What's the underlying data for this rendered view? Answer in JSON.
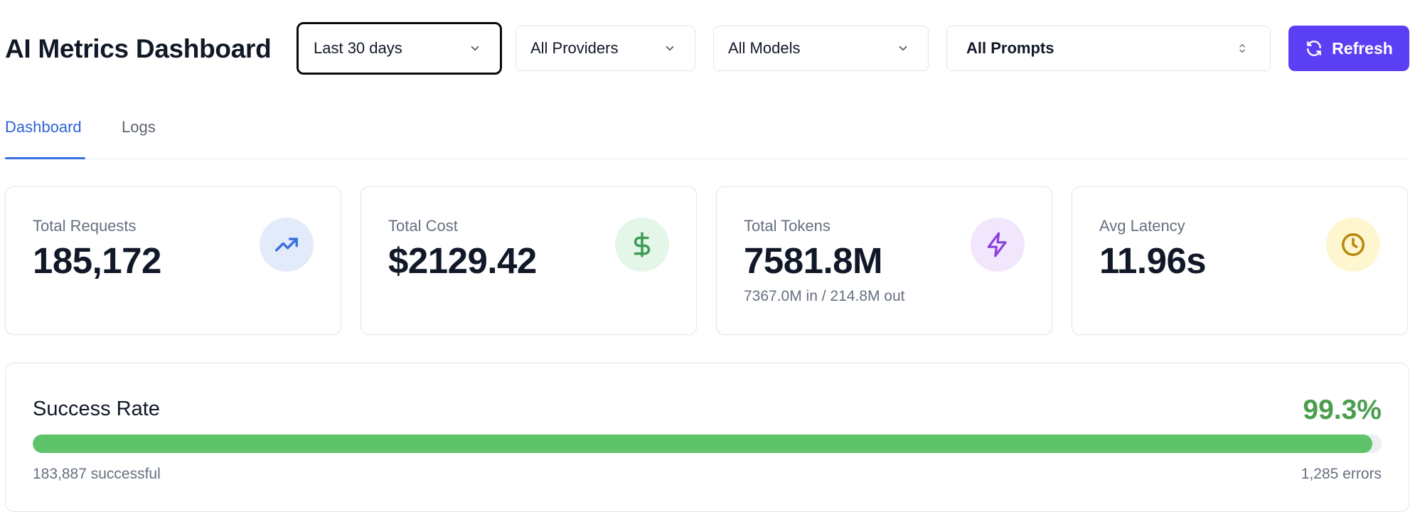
{
  "header": {
    "title": "AI Metrics Dashboard",
    "filters": {
      "date_range": "Last 30 days",
      "provider": "All Providers",
      "model": "All Models",
      "prompt": "All Prompts"
    },
    "refresh_label": "Refresh"
  },
  "tabs": [
    {
      "label": "Dashboard",
      "active": true
    },
    {
      "label": "Logs",
      "active": false
    }
  ],
  "stats": [
    {
      "label": "Total Requests",
      "value": "185,172",
      "icon": "trending-up-icon",
      "icon_color": "#3b6fe0",
      "icon_bg": "#e3ebfb"
    },
    {
      "label": "Total Cost",
      "value": "$2129.42",
      "icon": "dollar-icon",
      "icon_color": "#3f9b55",
      "icon_bg": "#e3f6e8"
    },
    {
      "label": "Total Tokens",
      "value": "7581.8M",
      "sub": "7367.0M in / 214.8M out",
      "icon": "lightning-icon",
      "icon_color": "#8a3fe0",
      "icon_bg": "#f1e6fb"
    },
    {
      "label": "Avg Latency",
      "value": "11.96s",
      "icon": "clock-icon",
      "icon_color": "#b8860b",
      "icon_bg": "#fdf6cf"
    }
  ],
  "success_rate": {
    "title": "Success Rate",
    "percent_label": "99.3%",
    "percent": 99.3,
    "successful": "183,887 successful",
    "errors": "1,285 errors"
  },
  "colors": {
    "accent": "#5b3ff5",
    "tab_active": "#2f62d9",
    "success": "#5fc36a"
  }
}
